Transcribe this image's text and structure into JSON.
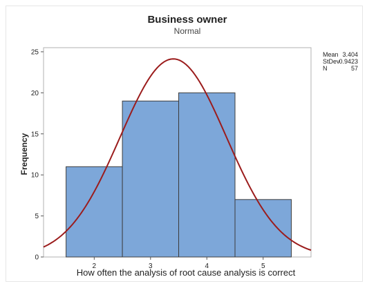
{
  "chart_data": {
    "type": "bar",
    "title": "Business owner",
    "subtitle": "Normal",
    "xlabel": "How often the analysis of root cause analysis is correct",
    "ylabel": "Frequency",
    "categories": [
      "2",
      "3",
      "4",
      "5"
    ],
    "bins": [
      {
        "left": 1.5,
        "right": 2.5,
        "value": 11
      },
      {
        "left": 2.5,
        "right": 3.5,
        "value": 19
      },
      {
        "left": 3.5,
        "right": 4.5,
        "value": 20
      },
      {
        "left": 4.5,
        "right": 5.5,
        "value": 7
      }
    ],
    "xlim": [
      1.1,
      5.85
    ],
    "ylim": [
      0,
      25.5
    ],
    "xticks": [
      2,
      3,
      4,
      5
    ],
    "yticks": [
      0,
      5,
      10,
      15,
      20,
      25
    ],
    "fit_curve": {
      "distribution": "normal",
      "mean": 3.404,
      "stdev": 0.9423,
      "n": 57,
      "bin_width": 1
    },
    "stats": [
      {
        "label": "Mean",
        "value": "3.404"
      },
      {
        "label": "StDev",
        "value": "0.9423"
      },
      {
        "label": "N",
        "value": "57"
      }
    ],
    "colors": {
      "bar_fill": "#7da7d9",
      "bar_stroke": "#3d3d3d",
      "curve": "#9b1c1c",
      "axis": "#555555"
    }
  }
}
